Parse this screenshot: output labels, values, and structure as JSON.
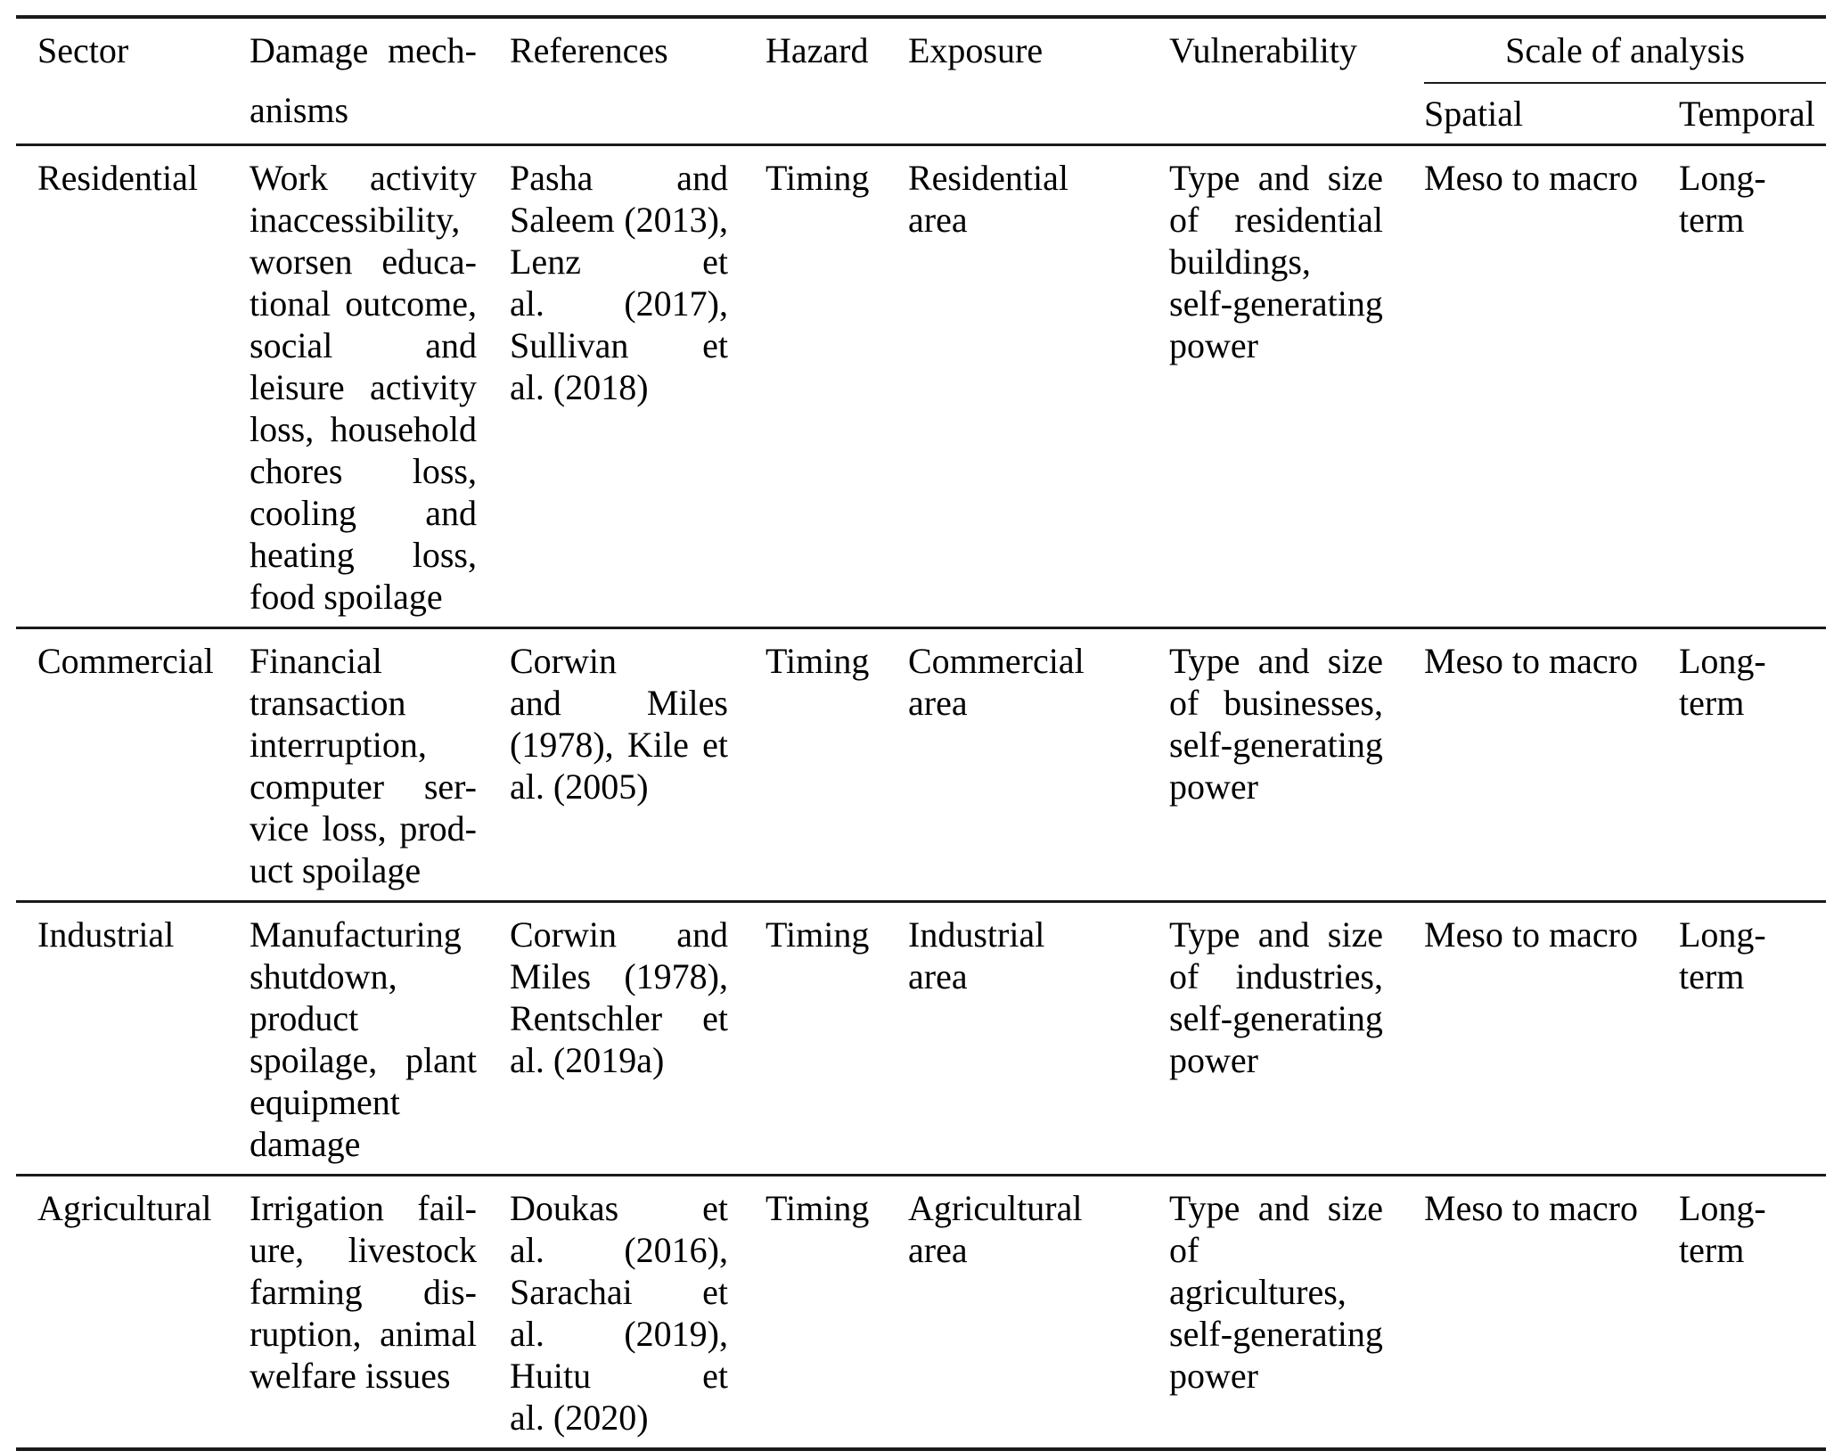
{
  "table": {
    "header": {
      "sector": "Sector",
      "damage_lines": [
        "Damage mech-",
        "anisms"
      ],
      "references": "References",
      "hazard": "Hazard",
      "exposure": "Exposure",
      "vulnerability": "Vulnerability",
      "scale_group": "Scale of analysis",
      "spatial": "Spatial",
      "temporal": "Temporal"
    },
    "rows": [
      {
        "sector": "Residential",
        "damage_lines": [
          "Work activity",
          "inaccessibility,",
          "worsen educa-",
          "tional outcome,",
          "social and",
          "leisure activity",
          "loss, household",
          "chores loss,",
          "cooling and",
          "heating loss,",
          "food spoilage"
        ],
        "references_lines": [
          "Pasha and",
          "Saleem (2013),",
          "Lenz et",
          "al. (2017),",
          "Sullivan et",
          "al. (2018)"
        ],
        "hazard": "Timing",
        "exposure_lines": [
          "Residential",
          "area"
        ],
        "vulnerability_lines": [
          "Type and size",
          "of residential",
          "buildings,",
          "self-generating",
          "power"
        ],
        "spatial": "Meso to macro",
        "temporal": "Long-term"
      },
      {
        "sector": "Commercial",
        "damage_lines": [
          "Financial",
          "transaction",
          "interruption,",
          "computer ser-",
          "vice loss, prod-",
          "uct spoilage"
        ],
        "references_lines": [
          "Corwin",
          "and Miles",
          "(1978), Kile et",
          "al. (2005)"
        ],
        "hazard": "Timing",
        "exposure_lines": [
          "Commercial",
          "area"
        ],
        "vulnerability_lines": [
          "Type and size",
          "of businesses,",
          "self-generating",
          "power"
        ],
        "spatial": "Meso to macro",
        "temporal": "Long-term"
      },
      {
        "sector": "Industrial",
        "damage_lines": [
          "Manufacturing",
          "shutdown,",
          "product",
          "spoilage, plant",
          "equipment",
          "damage"
        ],
        "references_lines": [
          "Corwin and",
          "Miles (1978),",
          "Rentschler et",
          "al. (2019a)"
        ],
        "hazard": "Timing",
        "exposure_lines": [
          "Industrial area"
        ],
        "vulnerability_lines": [
          "Type and size",
          "of industries,",
          "self-generating",
          "power"
        ],
        "spatial": "Meso to macro",
        "temporal": "Long-term"
      },
      {
        "sector": "Agricultural",
        "damage_lines": [
          "Irrigation fail-",
          "ure, livestock",
          "farming dis-",
          "ruption, animal",
          "welfare issues"
        ],
        "references_lines": [
          "Doukas et",
          "al. (2016),",
          "Sarachai et",
          "al. (2019),",
          "Huitu et",
          "al. (2020)"
        ],
        "hazard": "Timing",
        "exposure_lines": [
          "Agricultural",
          "area"
        ],
        "vulnerability_lines": [
          "Type and size",
          "of agricultures,",
          "self-generating",
          "power"
        ],
        "spatial": "Meso to macro",
        "temporal": "Long-term"
      }
    ]
  }
}
